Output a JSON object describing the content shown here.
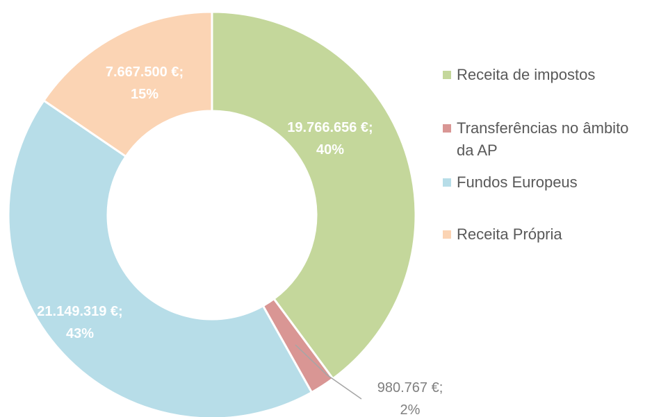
{
  "chart_data": {
    "type": "donut",
    "categories": [
      "Receita de impostos",
      "Transferências no âmbito da AP",
      "Fundos Europeus",
      "Receita Própria"
    ],
    "values": [
      19766656,
      980767,
      21149319,
      7667500
    ],
    "value_labels": [
      "19.766.656 €;",
      "980.767 €;",
      "21.149.319 €;",
      "7.667.500 €;"
    ],
    "percent_labels": [
      "40%",
      "2%",
      "43%",
      "15%"
    ],
    "colors": [
      "#c4d79b",
      "#d99694",
      "#b7dde8",
      "#fbd4b4"
    ],
    "legend": "right"
  }
}
